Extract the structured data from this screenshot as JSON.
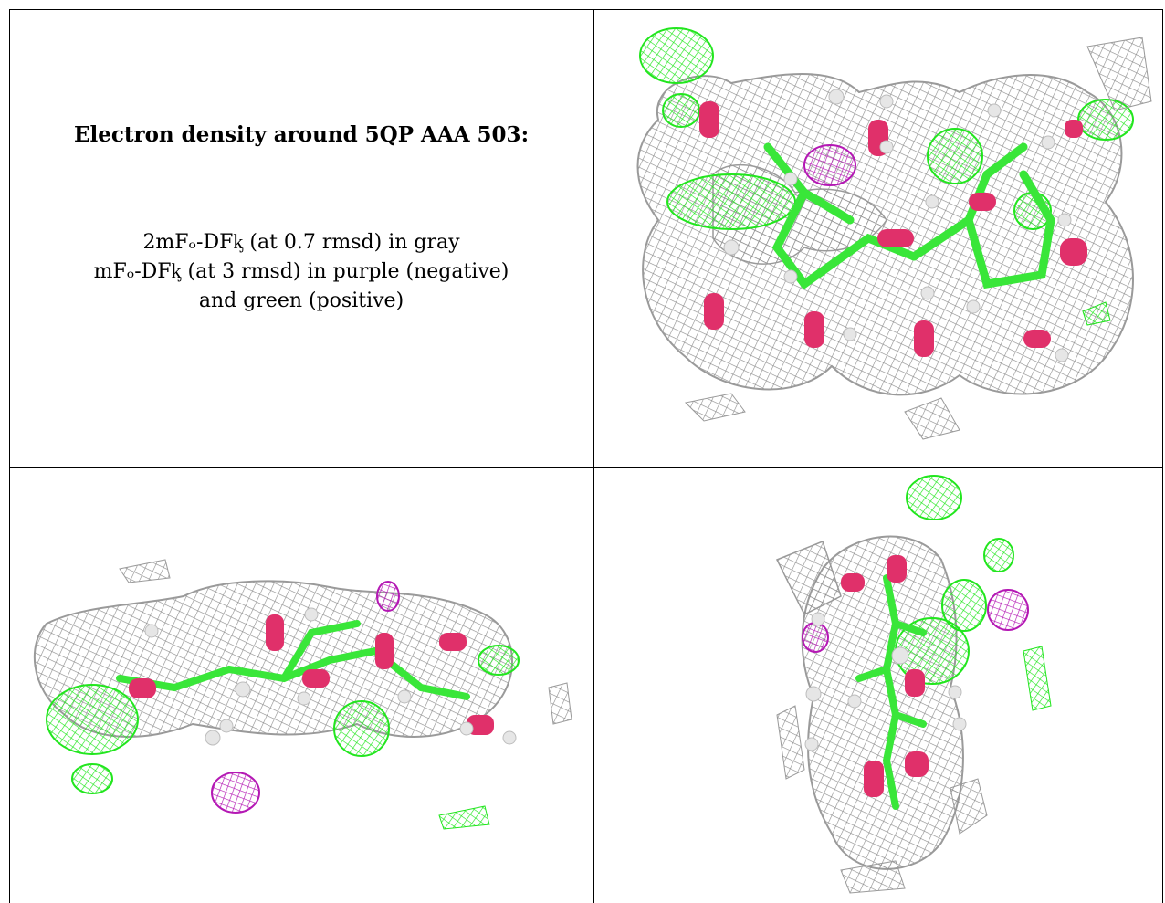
{
  "caption": {
    "heading": "Electron density around 5QP AAA 503:",
    "line1": "2mFₒ-DFᶄ (at 0.7 rmsd) in gray",
    "line2": "mFₒ-DFᶄ (at 3 rmsd) in purple (negative)",
    "line3": "and green (positive)"
  },
  "panels": [
    {
      "name": "view-top-right",
      "description": "density map view 1"
    },
    {
      "name": "view-bottom-left",
      "description": "density map view 2"
    },
    {
      "name": "view-bottom-right",
      "description": "density map view 3"
    }
  ],
  "colors": {
    "mesh_gray": "#8c8c8c",
    "positive_green": "#22e61e",
    "negative_purple": "#b418b4",
    "oxygen": "#e0306a",
    "carbon": "#39e639",
    "hydrogen": "#dcdcdc"
  }
}
